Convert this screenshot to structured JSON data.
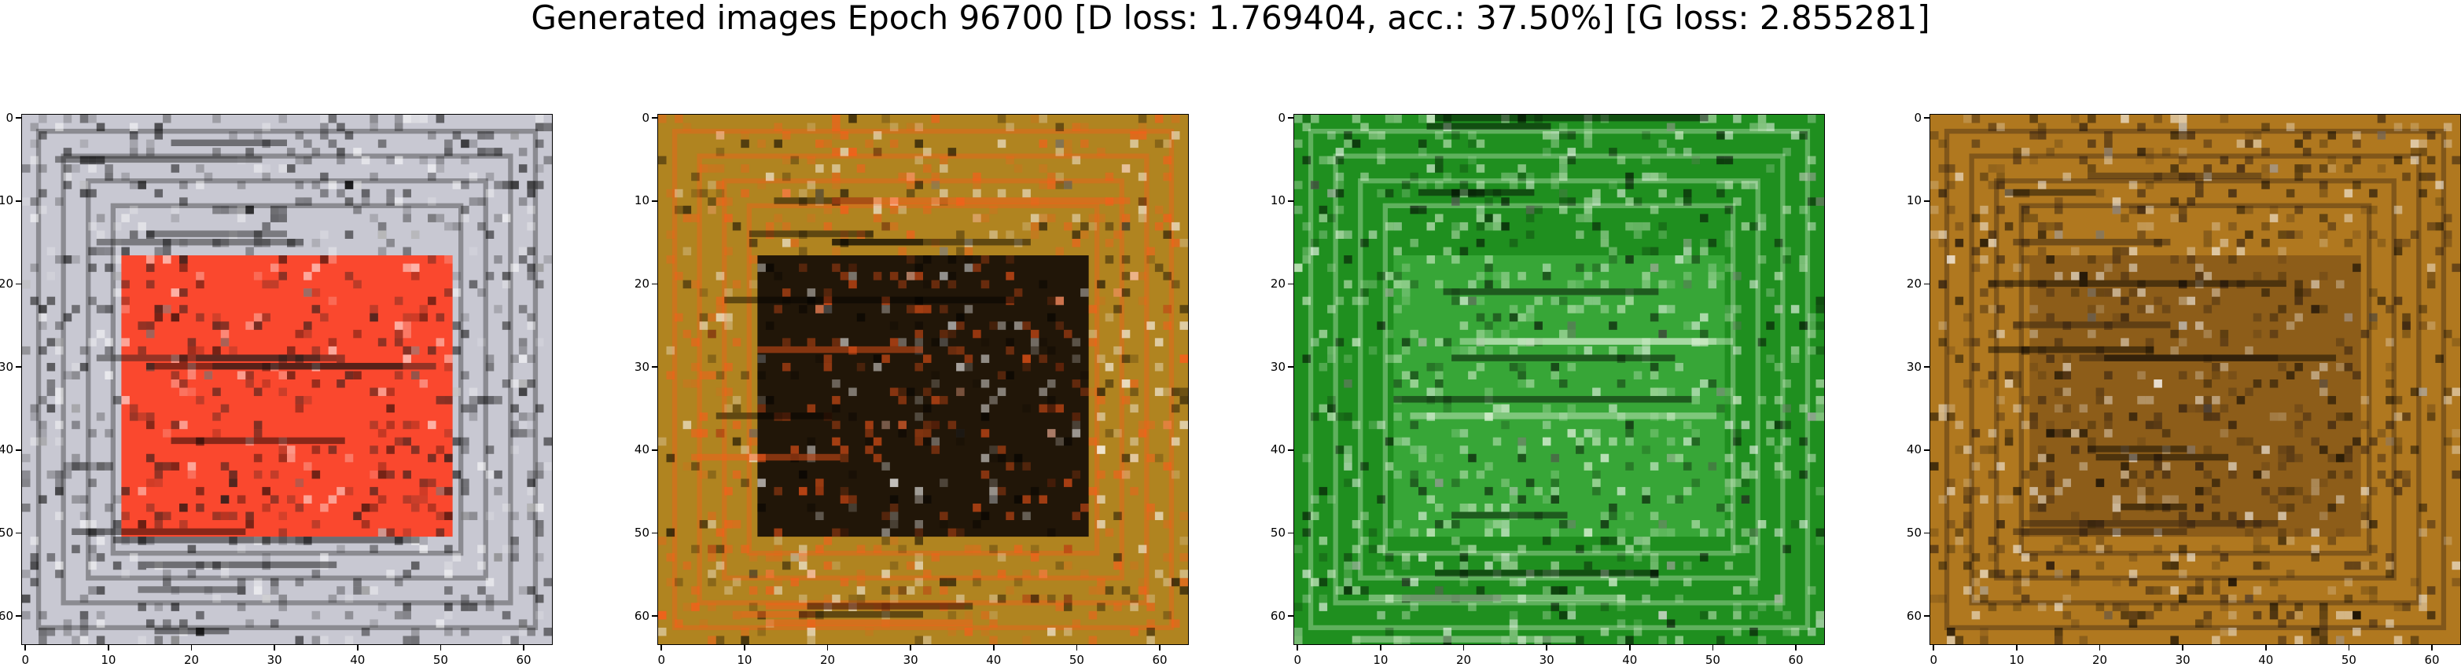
{
  "figure": {
    "title": "Generated images Epoch 96700 [D loss: 1.769404, acc.: 37.50%] [G loss: 2.855281]"
  },
  "panels": [
    {
      "name": "generated-sample-1",
      "base": "#c8c8d2",
      "inner": "#ff3a1c",
      "accent": "#1a1a1a",
      "x_tick_labels": [
        "0",
        "10",
        "20",
        "30",
        "40",
        "50",
        "60"
      ],
      "y_tick_labels": [
        "0",
        "10",
        "20",
        "30",
        "40",
        "50",
        "60"
      ]
    },
    {
      "name": "generated-sample-2",
      "base": "#b08420",
      "inner": "#120a05",
      "accent": "#ff5a1a",
      "x_tick_labels": [
        "0",
        "10",
        "20",
        "30",
        "40",
        "50",
        "60"
      ],
      "y_tick_labels": [
        "0",
        "10",
        "20",
        "30",
        "40",
        "50",
        "60"
      ]
    },
    {
      "name": "generated-sample-3",
      "base": "#1f8f1f",
      "inner": "#3aa83a",
      "accent": "#d8f0d0",
      "x_tick_labels": [
        "0",
        "10",
        "20",
        "30",
        "40",
        "50",
        "60"
      ],
      "y_tick_labels": [
        "0",
        "10",
        "20",
        "30",
        "40",
        "50",
        "60"
      ]
    },
    {
      "name": "generated-sample-4",
      "base": "#b0781f",
      "inner": "#8a5a18",
      "accent": "#2a1a10",
      "x_tick_labels": [
        "0",
        "10",
        "20",
        "30",
        "40",
        "50",
        "60"
      ],
      "y_tick_labels": [
        "0",
        "10",
        "20",
        "30",
        "40",
        "50",
        "60"
      ]
    }
  ]
}
